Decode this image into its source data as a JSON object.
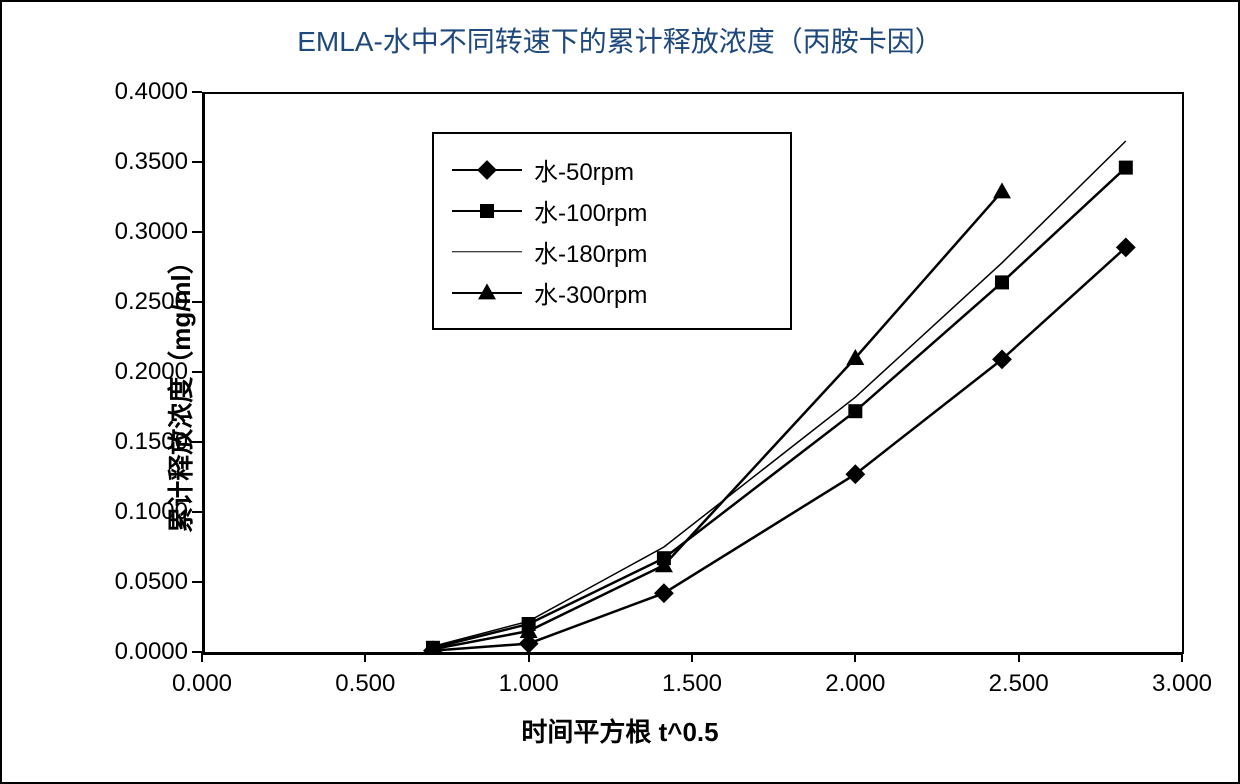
{
  "chart": {
    "type": "line",
    "title": "EMLA-水中不同转速下的累计释放浓度（丙胺卡因）",
    "title_color": "#1f497d",
    "title_fontsize": 28,
    "x_axis": {
      "title": "时间平方根 t^0.5",
      "min": 0.0,
      "max": 3.0,
      "tick_step": 0.5,
      "ticks": [
        "0.000",
        "0.500",
        "1.000",
        "1.500",
        "2.000",
        "2.500",
        "3.000"
      ],
      "title_fontsize": 26,
      "label_fontsize": 24
    },
    "y_axis": {
      "title": "累计释放浓度（mg/ml）",
      "min": 0.0,
      "max": 0.4,
      "tick_step": 0.05,
      "ticks": [
        "0.0000",
        "0.0500",
        "0.1000",
        "0.1500",
        "0.2000",
        "0.2500",
        "0.3000",
        "0.3500",
        "0.4000"
      ],
      "title_fontsize": 26,
      "label_fontsize": 24
    },
    "series": [
      {
        "label": "水-50rpm",
        "marker": "diamond",
        "color": "#000000",
        "line_width": 2.5,
        "x": [
          0.707,
          1.0,
          1.414,
          2.0,
          2.449,
          2.828
        ],
        "y": [
          0.001,
          0.006,
          0.042,
          0.127,
          0.209,
          0.289
        ]
      },
      {
        "label": "水-100rpm",
        "marker": "square",
        "color": "#000000",
        "line_width": 2.5,
        "x": [
          0.707,
          1.0,
          1.414,
          2.0,
          2.449,
          2.828
        ],
        "y": [
          0.003,
          0.02,
          0.067,
          0.172,
          0.264,
          0.346
        ]
      },
      {
        "label": "水-180rpm",
        "marker": "none",
        "color": "#000000",
        "line_width": 1.5,
        "x": [
          0.707,
          1.0,
          1.414,
          2.0,
          2.449,
          2.828
        ],
        "y": [
          0.004,
          0.022,
          0.075,
          0.182,
          0.278,
          0.365
        ]
      },
      {
        "label": "水-300rpm",
        "marker": "triangle",
        "color": "#000000",
        "line_width": 2.5,
        "x": [
          0.707,
          1.0,
          1.414,
          2.0,
          2.449
        ],
        "y": [
          0.002,
          0.015,
          0.062,
          0.21,
          0.329
        ]
      }
    ],
    "legend": {
      "position": "inside-top-left",
      "border_color": "#000000",
      "background_color": "#ffffff",
      "fontsize": 24
    },
    "background_color": "#ffffff",
    "border_color": "#000000",
    "axis_color": "#000000",
    "plot_border": true,
    "grid": false
  }
}
